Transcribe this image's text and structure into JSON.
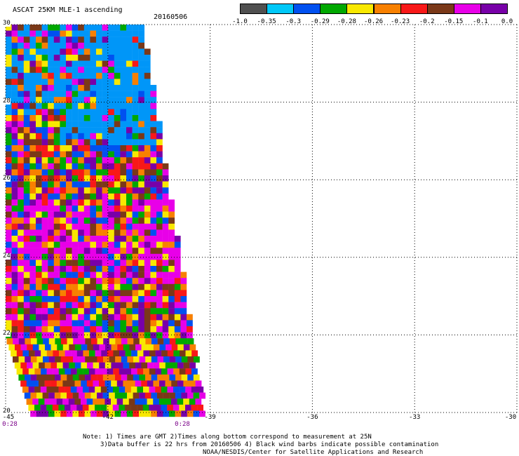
{
  "header": {
    "title": "ASCAT 25KM MLE-1 ascending",
    "date": "20160506"
  },
  "colorbar": {
    "colors": [
      "#505050",
      "#00c8f8",
      "#0050f0",
      "#00a800",
      "#f8e800",
      "#f88000",
      "#f81818",
      "#7a3818",
      "#e800e8",
      "#7800a8"
    ],
    "tick_labels": [
      "-1.0",
      "-0.35",
      "-0.3",
      "-0.29",
      "-0.28",
      "-0.26",
      "-0.23",
      "-0.2",
      "-0.15",
      "-0.1",
      "0.0"
    ]
  },
  "map": {
    "lon_range": [
      -45,
      -30
    ],
    "lat_range": [
      20,
      30
    ],
    "x_tick_labels": [
      "-45",
      "-42",
      "-39",
      "-36",
      "-33",
      "-30"
    ],
    "y_tick_labels": [
      "30",
      "28",
      "26",
      "24",
      "22",
      "20"
    ],
    "time_labels": [
      "0:28",
      "0:28"
    ],
    "swath_cell_colors": [
      "#0050f0",
      "#00a800",
      "#f8e800",
      "#f88000",
      "#f81818",
      "#7a3818",
      "#e800e8",
      "#7800a8"
    ]
  },
  "notes": {
    "line1": "Note: 1) Times are GMT 2)Times along bottom correspond to measurement at 25N",
    "line2": "3)Data buffer is 22 hrs from 20160506 4) Black wind barbs indicate possible contamination",
    "line3": "NOAA/NESDIS/Center for Satellite Applications and Research"
  }
}
